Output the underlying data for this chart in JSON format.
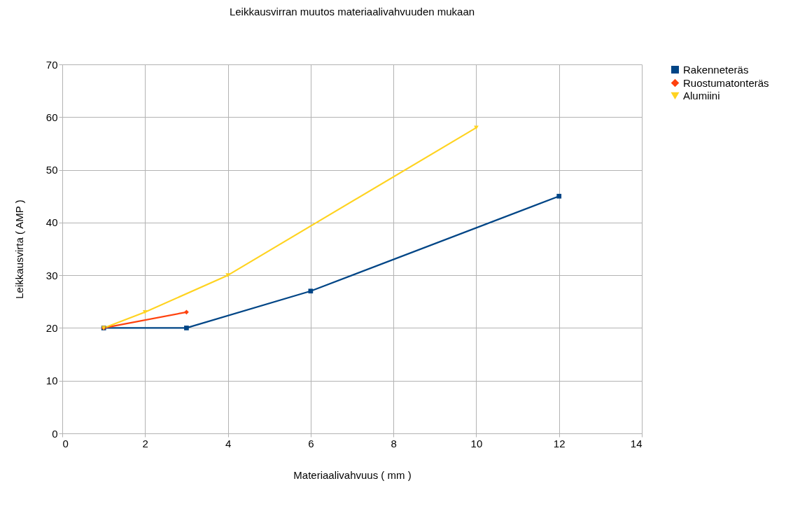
{
  "chart_data": {
    "type": "line",
    "title": "Leikkausvirran muutos materiaalivahvuuden mukaan",
    "xlabel": "Materiaalivahvuus ( mm )",
    "ylabel": "Leikkausvirta ( AMP )",
    "xlim": [
      0,
      14
    ],
    "xticks": [
      0,
      2,
      4,
      6,
      8,
      10,
      12,
      14
    ],
    "ylim": [
      0,
      70
    ],
    "yticks": [
      0,
      10,
      20,
      30,
      40,
      50,
      60,
      70
    ],
    "grid": true,
    "legend": "right",
    "series": [
      {
        "name": "Rakenneteräs",
        "color": "#004586",
        "marker": "square",
        "x": [
          1,
          3,
          6,
          12
        ],
        "values": [
          20,
          20,
          27,
          45
        ]
      },
      {
        "name": "Ruostumatonteräs",
        "color": "#ff420e",
        "marker": "diamond",
        "x": [
          1,
          3
        ],
        "values": [
          20,
          23
        ]
      },
      {
        "name": "Alumiini",
        "color": "#ffd320",
        "marker": "triangle",
        "x": [
          1,
          2,
          4,
          10
        ],
        "values": [
          20,
          23,
          30,
          58
        ]
      }
    ]
  }
}
